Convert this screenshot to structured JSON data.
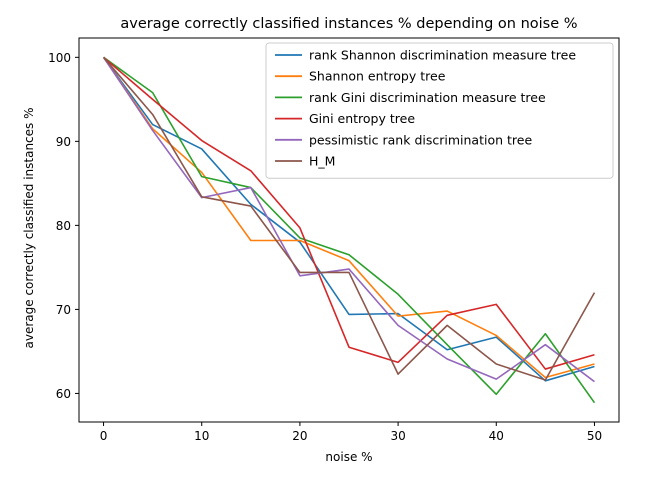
{
  "chart_data": {
    "type": "line",
    "title": "average correctly classified instances % depending on noise %",
    "xlabel": "noise %",
    "ylabel": "average correctly classified instances %",
    "xlim": [
      -2.5,
      52.5
    ],
    "ylim": [
      56.6,
      102.3
    ],
    "xticks": [
      0,
      10,
      20,
      30,
      40,
      50
    ],
    "yticks": [
      60,
      70,
      80,
      90,
      100
    ],
    "grid": false,
    "legend_position": "top-right",
    "x": [
      0,
      5,
      10,
      15,
      20,
      25,
      30,
      35,
      40,
      45,
      50
    ],
    "series": [
      {
        "name": "rank Shannon discrimination measure tree",
        "color": "#1f77b4",
        "values": [
          100,
          92,
          89.1,
          82.5,
          78,
          69.4,
          69.5,
          65.2,
          66.7,
          61.5,
          63.2
        ]
      },
      {
        "name": "Shannon entropy tree",
        "color": "#ff7f0e",
        "values": [
          100,
          91.5,
          86.3,
          78.2,
          78.2,
          75.8,
          69.2,
          69.8,
          66.9,
          61.9,
          63.5
        ]
      },
      {
        "name": "rank Gini discrimination measure tree",
        "color": "#2ca02c",
        "values": [
          100,
          95.8,
          85.8,
          84.5,
          78.5,
          76.5,
          71.8,
          65.8,
          59.9,
          67.1,
          58.9
        ]
      },
      {
        "name": "Gini entropy tree",
        "color": "#d62728",
        "values": [
          100,
          95,
          90.1,
          86.5,
          79.7,
          65.5,
          63.7,
          69.3,
          70.6,
          62.9,
          64.6
        ]
      },
      {
        "name": "pessimistic rank discrimination tree",
        "color": "#9467bd",
        "values": [
          100,
          91.3,
          83.3,
          84.5,
          74,
          74.8,
          68.1,
          64.1,
          61.7,
          65.8,
          61.4
        ]
      },
      {
        "name": "H_M",
        "color": "#8c564b",
        "values": [
          100,
          93.2,
          83.4,
          82.3,
          74.4,
          74.4,
          62.3,
          68.1,
          63.5,
          61.6,
          72
        ]
      }
    ]
  }
}
